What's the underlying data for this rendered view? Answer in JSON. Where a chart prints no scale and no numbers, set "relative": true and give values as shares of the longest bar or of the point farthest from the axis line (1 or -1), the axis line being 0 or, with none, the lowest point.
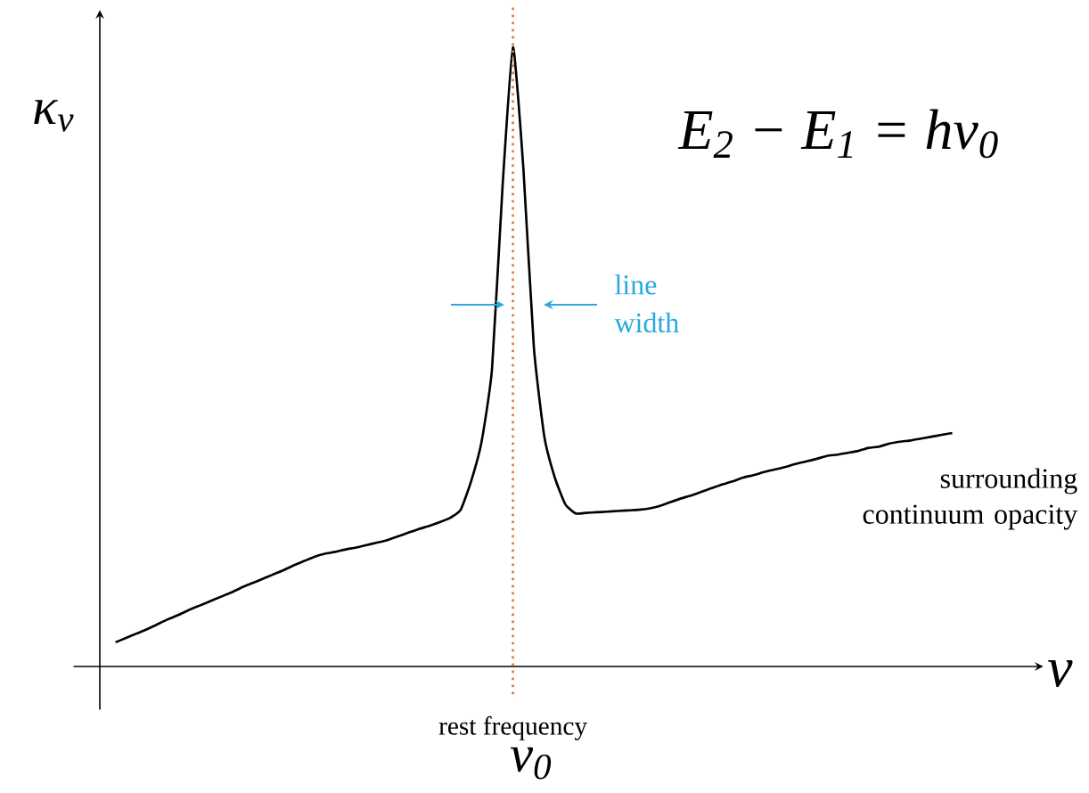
{
  "chart_data": {
    "type": "line",
    "relative": true,
    "xlabel": "ν",
    "ylabel": "κ$_{ν}$",
    "categories": [
      null,
      null,
      null,
      null,
      null,
      null,
      null,
      null,
      null,
      null,
      null,
      null,
      null,
      null,
      null,
      null,
      null,
      null,
      null,
      null,
      null,
      null,
      null,
      null,
      null,
      null,
      null,
      null,
      null,
      null,
      null,
      null,
      null,
      null,
      null,
      null,
      null,
      null,
      null,
      null,
      null,
      null,
      null,
      null,
      null,
      null,
      null,
      null,
      null,
      null,
      null,
      null,
      null,
      null,
      null,
      null,
      null,
      null,
      null,
      null,
      null,
      null,
      null,
      null,
      null,
      null,
      null,
      null,
      null,
      null,
      null,
      null,
      null,
      null,
      null,
      null,
      null,
      null,
      null,
      null,
      null
    ],
    "series": [
      {
        "color": "#000000",
        "values": [
          0.039,
          0.046,
          0.053,
          0.06,
          0.068,
          0.076,
          0.083,
          0.091,
          0.098,
          0.105,
          0.112,
          0.119,
          0.127,
          0.134,
          0.141,
          0.148,
          0.155,
          0.163,
          0.17,
          0.177,
          0.182,
          0.185,
          0.189,
          0.192,
          0.196,
          0.2,
          0.204,
          0.21,
          0.216,
          0.222,
          0.227,
          0.233,
          0.24,
          0.253,
          0.299,
          0.363,
          0.481,
          0.774,
          1,
          0.803,
          0.515,
          0.371,
          0.305,
          0.262,
          0.247,
          0.248,
          0.249,
          0.25,
          0.251,
          0.252,
          0.253,
          0.255,
          0.259,
          0.265,
          0.271,
          0.276,
          0.282,
          0.288,
          0.294,
          0.299,
          0.305,
          0.309,
          0.314,
          0.318,
          0.322,
          0.327,
          0.331,
          0.335,
          0.34,
          0.342,
          0.345,
          0.348,
          0.353,
          0.355,
          0.36,
          0.363,
          0.365,
          0.368,
          0.371,
          0.374,
          0.377
        ]
      }
    ],
    "annotations": [
      "E$_{2}$ − E$_{1}$ = hν$_{0}$",
      "line width",
      "surrounding continuum opacity",
      "ν$_{0}$",
      "rest frequency"
    ],
    "marker": "none",
    "line_style": "solid"
  }
}
